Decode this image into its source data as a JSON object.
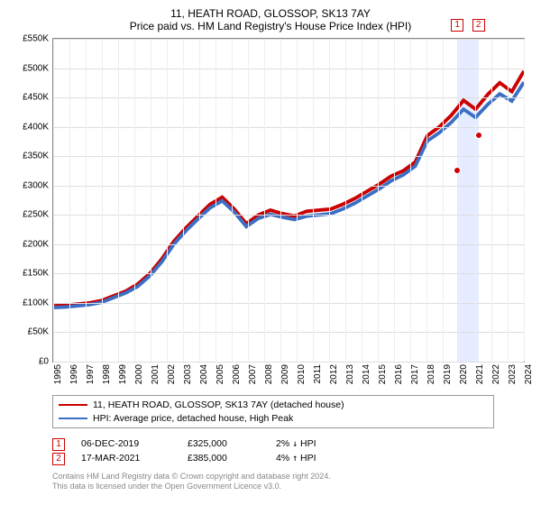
{
  "title": "11, HEATH ROAD, GLOSSOP, SK13 7AY",
  "subtitle": "Price paid vs. HM Land Registry's House Price Index (HPI)",
  "chart": {
    "type": "line",
    "y_axis": {
      "min": 0,
      "max": 550000,
      "step": 50000,
      "labels": [
        "£0",
        "£50K",
        "£100K",
        "£150K",
        "£200K",
        "£250K",
        "£300K",
        "£350K",
        "£400K",
        "£450K",
        "£500K",
        "£550K"
      ]
    },
    "x_axis": {
      "labels": [
        "1995",
        "1996",
        "1997",
        "1998",
        "1999",
        "2000",
        "2001",
        "2002",
        "2003",
        "2004",
        "2005",
        "2006",
        "2007",
        "2008",
        "2009",
        "2010",
        "2011",
        "2012",
        "2013",
        "2014",
        "2015",
        "2016",
        "2017",
        "2018",
        "2019",
        "2020",
        "2021",
        "2022",
        "2023",
        "2024"
      ]
    },
    "colors": {
      "grid": "#dddddd",
      "grid_v": "#eeeeee",
      "border": "#888888",
      "highlight": "#e6ecff",
      "series1": "#cc0000",
      "series2": "#3b6fc4",
      "marker": "#cc0000",
      "text": "#000000",
      "muted": "#888888"
    },
    "line_width": 1.3,
    "series": [
      {
        "name": "11, HEATH ROAD, GLOSSOP, SK13 7AY (detached house)",
        "color": "#cc0000",
        "data": [
          95,
          96,
          98,
          100,
          104,
          112,
          120,
          132,
          150,
          175,
          205,
          228,
          248,
          268,
          280,
          260,
          235,
          250,
          258,
          252,
          248,
          256,
          258,
          260,
          268,
          278,
          290,
          302,
          316,
          325,
          340,
          385,
          400,
          420,
          445,
          430,
          455,
          475,
          460,
          495
        ]
      },
      {
        "name": "HPI: Average price, detached house, High Peak",
        "color": "#3b6fc4",
        "data": [
          92,
          93,
          95,
          97,
          101,
          109,
          117,
          128,
          146,
          170,
          200,
          223,
          243,
          262,
          274,
          255,
          230,
          244,
          251,
          246,
          242,
          248,
          250,
          252,
          260,
          270,
          282,
          294,
          308,
          318,
          333,
          376,
          390,
          408,
          430,
          416,
          438,
          456,
          444,
          476
        ]
      }
    ],
    "highlight_band": {
      "from_idx": 24.9,
      "to_idx": 26.2
    },
    "markers": [
      {
        "num": "1",
        "x_idx": 24.9,
        "y": 325000
      },
      {
        "num": "2",
        "x_idx": 26.2,
        "y": 385000
      }
    ]
  },
  "legend": [
    {
      "color": "#cc0000",
      "label": "11, HEATH ROAD, GLOSSOP, SK13 7AY (detached house)"
    },
    {
      "color": "#3b6fc4",
      "label": "HPI: Average price, detached house, High Peak"
    }
  ],
  "transactions": [
    {
      "num": "1",
      "date": "06-DEC-2019",
      "price": "£325,000",
      "delta_pct": "2%",
      "arrow": "↓",
      "vs": "HPI"
    },
    {
      "num": "2",
      "date": "17-MAR-2021",
      "price": "£385,000",
      "delta_pct": "4%",
      "arrow": "↑",
      "vs": "HPI"
    }
  ],
  "footnote_line1": "Contains HM Land Registry data © Crown copyright and database right 2024.",
  "footnote_line2": "This data is licensed under the Open Government Licence v3.0."
}
